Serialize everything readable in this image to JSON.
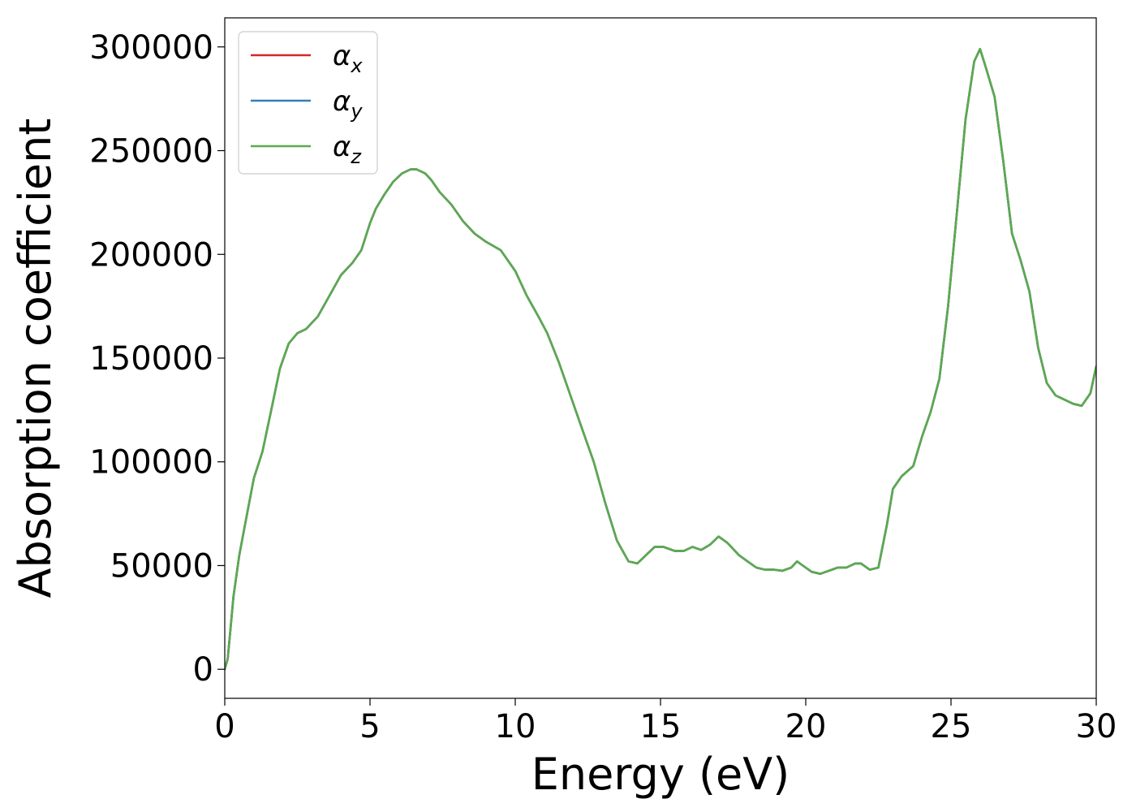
{
  "chart_data": {
    "type": "line",
    "title": "",
    "xlabel": "Energy (eV)",
    "ylabel": "Absorption coefficient",
    "xlim": [
      0,
      30
    ],
    "ylim": [
      -14000,
      314000
    ],
    "xticks": [
      0,
      5,
      10,
      15,
      20,
      25,
      30
    ],
    "yticks": [
      0,
      50000,
      100000,
      150000,
      200000,
      250000,
      300000
    ],
    "grid": false,
    "legend_position": "top-left",
    "x": [
      0,
      0.1,
      0.2,
      0.3,
      0.5,
      0.7,
      1.0,
      1.3,
      1.6,
      1.9,
      2.2,
      2.5,
      2.8,
      3.2,
      3.6,
      4.0,
      4.4,
      4.7,
      5.0,
      5.2,
      5.5,
      5.8,
      6.1,
      6.4,
      6.6,
      6.9,
      7.1,
      7.4,
      7.8,
      8.2,
      8.6,
      9.0,
      9.5,
      10.0,
      10.4,
      10.8,
      11.1,
      11.5,
      11.9,
      12.3,
      12.7,
      13.1,
      13.5,
      13.9,
      14.2,
      14.5,
      14.8,
      15.1,
      15.5,
      15.8,
      16.1,
      16.4,
      16.7,
      17.0,
      17.3,
      17.7,
      18.0,
      18.3,
      18.6,
      18.9,
      19.2,
      19.5,
      19.7,
      19.9,
      20.2,
      20.5,
      20.8,
      21.1,
      21.4,
      21.7,
      21.9,
      22.2,
      22.5,
      22.8,
      23.0,
      23.3,
      23.7,
      24.0,
      24.3,
      24.6,
      24.9,
      25.2,
      25.5,
      25.8,
      26.0,
      26.2,
      26.5,
      26.8,
      27.1,
      27.4,
      27.7,
      28.0,
      28.3,
      28.6,
      28.9,
      29.2,
      29.5,
      29.8,
      30.0
    ],
    "series": [
      {
        "name": "α_x",
        "color": "#d62728",
        "values": [
          0,
          5000,
          20000,
          35000,
          55000,
          70000,
          92000,
          105000,
          125000,
          145000,
          157000,
          162000,
          164000,
          170000,
          180000,
          190000,
          196000,
          202000,
          215000,
          222000,
          229000,
          235000,
          239000,
          241000,
          241000,
          239000,
          236000,
          230000,
          224000,
          216000,
          210000,
          206000,
          202000,
          192000,
          180000,
          170000,
          162000,
          148000,
          132000,
          116000,
          100000,
          80000,
          62000,
          52000,
          51000,
          55000,
          59000,
          59000,
          57000,
          57000,
          59000,
          57500,
          60000,
          64000,
          61000,
          55000,
          52000,
          49000,
          48000,
          48000,
          47500,
          49000,
          52000,
          50000,
          47000,
          46000,
          47500,
          49000,
          49000,
          51000,
          51000,
          48000,
          49000,
          70000,
          87000,
          93000,
          98000,
          112000,
          124000,
          140000,
          175000,
          220000,
          265000,
          293000,
          299000,
          290000,
          276000,
          245000,
          210000,
          197000,
          182000,
          155000,
          138000,
          132000,
          130000,
          128000,
          127000,
          133000,
          146000
        ]
      },
      {
        "name": "α_y",
        "color": "#377eb8",
        "values": [
          0,
          5000,
          20000,
          35000,
          55000,
          70000,
          92000,
          105000,
          125000,
          145000,
          157000,
          162000,
          164000,
          170000,
          180000,
          190000,
          196000,
          202000,
          215000,
          222000,
          229000,
          235000,
          239000,
          241000,
          241000,
          239000,
          236000,
          230000,
          224000,
          216000,
          210000,
          206000,
          202000,
          192000,
          180000,
          170000,
          162000,
          148000,
          132000,
          116000,
          100000,
          80000,
          62000,
          52000,
          51000,
          55000,
          59000,
          59000,
          57000,
          57000,
          59000,
          57500,
          60000,
          64000,
          61000,
          55000,
          52000,
          49000,
          48000,
          48000,
          47500,
          49000,
          52000,
          50000,
          47000,
          46000,
          47500,
          49000,
          49000,
          51000,
          51000,
          48000,
          49000,
          70000,
          87000,
          93000,
          98000,
          112000,
          124000,
          140000,
          175000,
          220000,
          265000,
          293000,
          299000,
          290000,
          276000,
          245000,
          210000,
          197000,
          182000,
          155000,
          138000,
          132000,
          130000,
          128000,
          127000,
          133000,
          146000
        ]
      },
      {
        "name": "α_z",
        "color": "#5aaa4f",
        "values": [
          0,
          5000,
          20000,
          35000,
          55000,
          70000,
          92000,
          105000,
          125000,
          145000,
          157000,
          162000,
          164000,
          170000,
          180000,
          190000,
          196000,
          202000,
          215000,
          222000,
          229000,
          235000,
          239000,
          241000,
          241000,
          239000,
          236000,
          230000,
          224000,
          216000,
          210000,
          206000,
          202000,
          192000,
          180000,
          170000,
          162000,
          148000,
          132000,
          116000,
          100000,
          80000,
          62000,
          52000,
          51000,
          55000,
          59000,
          59000,
          57000,
          57000,
          59000,
          57500,
          60000,
          64000,
          61000,
          55000,
          52000,
          49000,
          48000,
          48000,
          47500,
          49000,
          52000,
          50000,
          47000,
          46000,
          47500,
          49000,
          49000,
          51000,
          51000,
          48000,
          49000,
          70000,
          87000,
          93000,
          98000,
          112000,
          124000,
          140000,
          175000,
          220000,
          265000,
          293000,
          299000,
          290000,
          276000,
          245000,
          210000,
          197000,
          182000,
          155000,
          138000,
          132000,
          130000,
          128000,
          127000,
          133000,
          146000
        ]
      }
    ],
    "legend": [
      {
        "base": "α",
        "sub": "x"
      },
      {
        "base": "α",
        "sub": "y"
      },
      {
        "base": "α",
        "sub": "z"
      }
    ]
  }
}
